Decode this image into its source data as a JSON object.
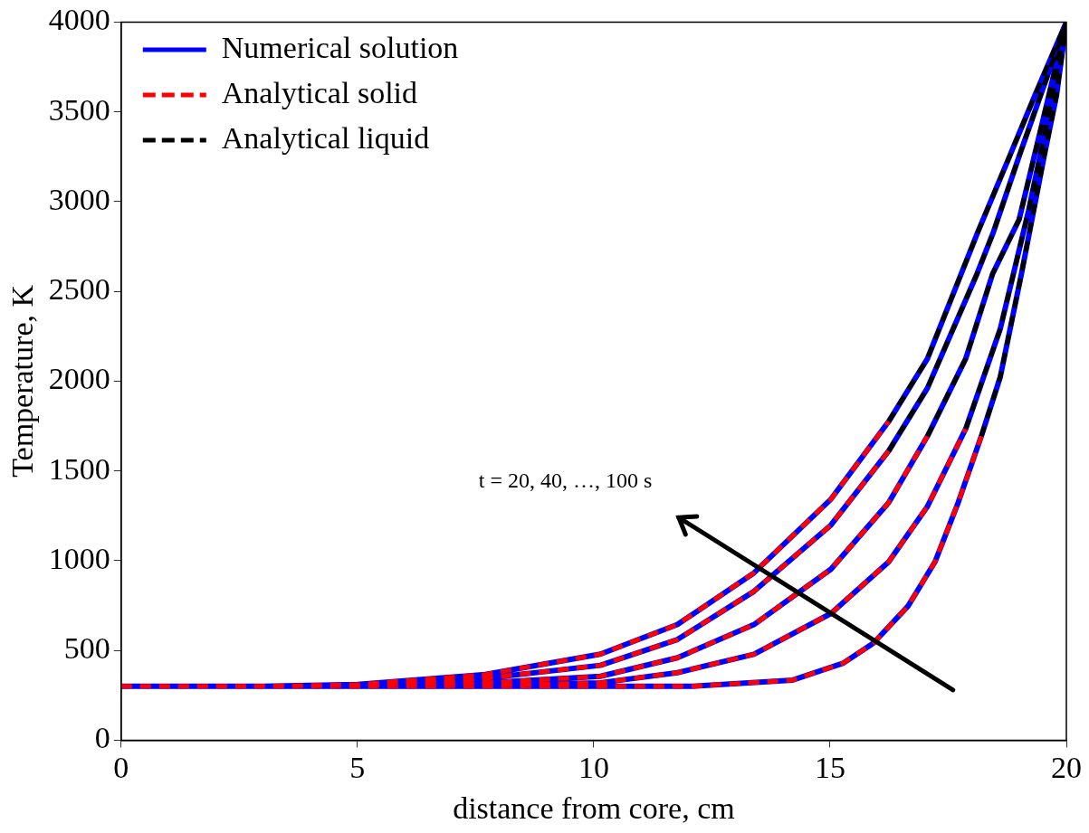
{
  "chart_data": {
    "type": "line",
    "xlabel": "distance from core, cm",
    "ylabel": "Temperature, K",
    "xlim": [
      0,
      20
    ],
    "xticks": [
      0,
      5,
      10,
      15,
      20
    ],
    "ylim": [
      0,
      4000
    ],
    "yticks": [
      0,
      500,
      1000,
      1500,
      2000,
      2500,
      3000,
      3500,
      4000
    ],
    "grid": false,
    "legend": "top left",
    "marker": "none",
    "annotations": [
      "t = 20, 40, …, 100 s"
    ],
    "series": [
      {
        "name": "Numerical solution",
        "color": "#0000ff",
        "line_style": "solid",
        "x": [
          0,
          3,
          5,
          7.7,
          10.14,
          11.77,
          13.39,
          15.02,
          16.24,
          17.06,
          18.13,
          18.8,
          19.33,
          20,
          null,
          0,
          3,
          5,
          7.7,
          10.14,
          11.77,
          13.39,
          15.02,
          16.24,
          17.06,
          18.11,
          18.46,
          19.0,
          19.45,
          20,
          null,
          0,
          5,
          7.7,
          10.14,
          11.77,
          13.39,
          15.02,
          16.24,
          17.06,
          17.87,
          18.44,
          19.0,
          19.5,
          20,
          null,
          0,
          5,
          7.7,
          10.14,
          11.77,
          13.39,
          15.02,
          16.24,
          17.06,
          17.87,
          18.6,
          19.2,
          19.6,
          20,
          null,
          0,
          5,
          12.09,
          14.21,
          15.27,
          15.92,
          16.65,
          17.22,
          17.71,
          18.2,
          18.6,
          19.05,
          19.53,
          19.79,
          20
        ],
        "values": [
          300,
          300,
          310,
          366,
          479,
          644,
          932,
          1343,
          1775,
          2125,
          2833,
          3253,
          3589,
          4000,
          null,
          300,
          300,
          305,
          345,
          417,
          561,
          829,
          1199,
          1611,
          1961,
          2598,
          2833,
          3253,
          3589,
          4000,
          null,
          300,
          302,
          320,
          356,
          459,
          644,
          953,
          1323,
          1693,
          2125,
          2598,
          2900,
          3450,
          4000,
          null,
          300,
          300,
          305,
          320,
          376,
          479,
          706,
          993,
          1302,
          1734,
          2290,
          2950,
          3450,
          4000,
          null,
          300,
          300,
          300,
          335,
          428,
          541,
          747,
          993,
          1323,
          1693,
          2022,
          2598,
          3253,
          3589,
          4000
        ]
      },
      {
        "name": "Analytical solid",
        "color": "#ff0000",
        "line_style": "dashed",
        "x": [
          0,
          3,
          5,
          7.7,
          10.14,
          11.77,
          13.39,
          15.02,
          16.24,
          null,
          0,
          3,
          5,
          7.7,
          10.14,
          11.77,
          13.39,
          15.02,
          16.24,
          null,
          0,
          5,
          7.7,
          10.14,
          11.77,
          13.39,
          15.02,
          16.24,
          17.06,
          null,
          0,
          5,
          7.7,
          10.14,
          11.77,
          13.39,
          15.02,
          16.24,
          17.06,
          17.87,
          null,
          0,
          5,
          12.09,
          14.21,
          15.27,
          15.92,
          16.65,
          17.22,
          17.71,
          18.2
        ],
        "values": [
          300,
          300,
          310,
          366,
          479,
          644,
          932,
          1343,
          1775,
          null,
          300,
          300,
          305,
          345,
          417,
          561,
          829,
          1199,
          1611,
          null,
          300,
          302,
          320,
          356,
          459,
          644,
          953,
          1323,
          1693,
          null,
          300,
          300,
          305,
          320,
          376,
          479,
          706,
          993,
          1302,
          1734,
          null,
          300,
          300,
          300,
          335,
          428,
          541,
          747,
          993,
          1323,
          1693
        ]
      },
      {
        "name": "Analytical liquid",
        "color": "#000000",
        "line_style": "dashed",
        "x": [
          16.24,
          17.06,
          18.13,
          18.8,
          19.33,
          20,
          null,
          16.24,
          17.06,
          18.11,
          18.46,
          19.0,
          19.45,
          20,
          null,
          17.06,
          17.87,
          18.44,
          19.0,
          19.5,
          20,
          null,
          17.87,
          18.6,
          19.2,
          19.6,
          20,
          null,
          18.2,
          18.6,
          19.05,
          19.53,
          19.79,
          20
        ],
        "values": [
          1775,
          2125,
          2833,
          3253,
          3589,
          4000,
          null,
          1611,
          1961,
          2598,
          2833,
          3253,
          3589,
          4000,
          null,
          1693,
          2125,
          2598,
          2900,
          3450,
          4000,
          null,
          1734,
          2290,
          2950,
          3450,
          4000,
          null,
          1693,
          2022,
          2598,
          3253,
          3589,
          4000
        ]
      }
    ]
  }
}
